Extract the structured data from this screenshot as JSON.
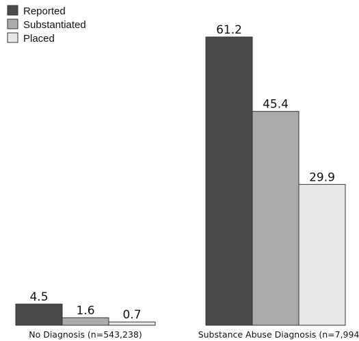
{
  "chart_data": {
    "type": "bar",
    "title": "",
    "xlabel": "",
    "ylabel": "",
    "categories": [
      "No Diagnosis (n=543,238)",
      "Substance Abuse Diagnosis (n=7,994)"
    ],
    "series": [
      {
        "name": "Reported",
        "values": [
          4.5,
          61.2
        ],
        "labels": [
          "4.5",
          "61.2"
        ],
        "color": "#4a4a4a"
      },
      {
        "name": "Substantiated",
        "values": [
          1.6,
          45.4
        ],
        "labels": [
          "1.6",
          "45.4"
        ],
        "color": "#ababab"
      },
      {
        "name": "Placed",
        "values": [
          0.7,
          29.9
        ],
        "labels": [
          "0.7",
          "29.9"
        ],
        "color": "#e8e8e8"
      }
    ],
    "ylim": [
      0,
      61.2
    ],
    "grid": false,
    "legend": "top-left"
  }
}
